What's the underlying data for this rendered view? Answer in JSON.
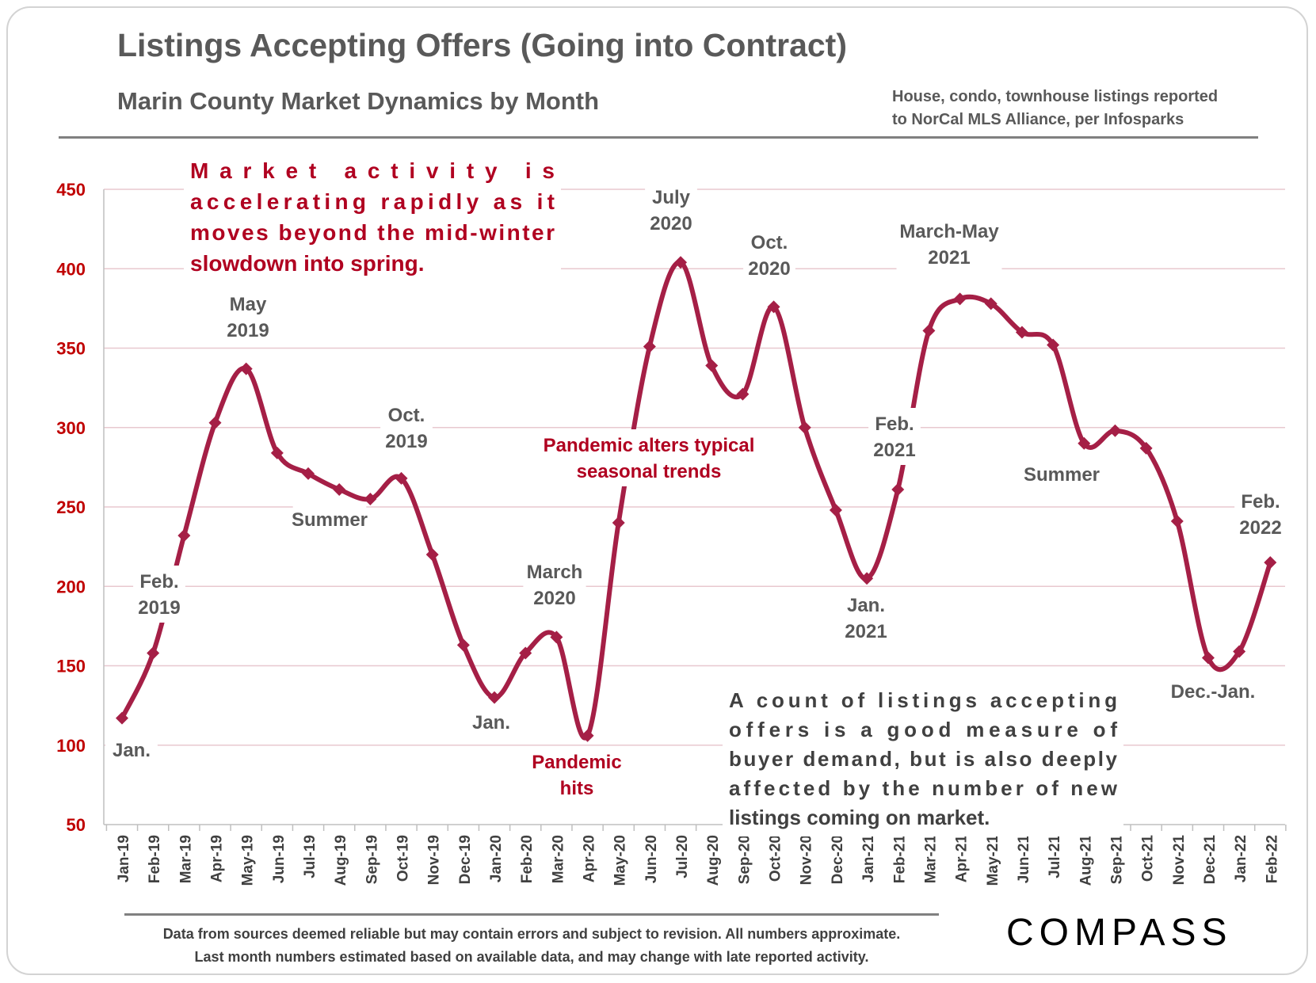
{
  "header": {
    "title": "Listings Accepting Offers (Going into Contract)",
    "subtitle": "Marin County Market Dynamics by Month",
    "source_line1": "House, condo, townhouse listings reported",
    "source_line2": "to NorCal MLS Alliance, per Infosparks"
  },
  "footer": {
    "disclaimer_line1": "Data from sources deemed reliable but may contain errors and subject to revision. All numbers approximate.",
    "disclaimer_line2": "Last month numbers estimated based on available data, and may change with late reported activity.",
    "logo": "COMPASS"
  },
  "colors": {
    "line": "#a51f46",
    "axis_text": "#c00000",
    "annotation_gray": "#595959",
    "annotation_red": "#b00020",
    "grid": "#e8c8cf"
  },
  "chart_data": {
    "type": "line",
    "title": "Listings Accepting Offers (Going into Contract)",
    "ylim": [
      50,
      450
    ],
    "yticks": [
      50,
      100,
      150,
      200,
      250,
      300,
      350,
      400,
      450
    ],
    "grid": true,
    "categories": [
      "Jan-19",
      "Feb-19",
      "Mar-19",
      "Apr-19",
      "May-19",
      "Jun-19",
      "Jul-19",
      "Aug-19",
      "Sep-19",
      "Oct-19",
      "Nov-19",
      "Dec-19",
      "Jan-20",
      "Feb-20",
      "Mar-20",
      "Apr-20",
      "May-20",
      "Jun-20",
      "Jul-20",
      "Aug-20",
      "Sep-20",
      "Oct-20",
      "Nov-20",
      "Dec-20",
      "Jan-21",
      "Feb-21",
      "Mar-21",
      "Apr-21",
      "May-21",
      "Jun-21",
      "Jul-21",
      "Aug-21",
      "Sep-21",
      "Oct-21",
      "Nov-21",
      "Dec-21",
      "Jan-22",
      "Feb-22"
    ],
    "values": [
      117,
      158,
      232,
      303,
      337,
      284,
      271,
      261,
      255,
      268,
      220,
      163,
      130,
      158,
      168,
      106,
      240,
      351,
      404,
      339,
      321,
      376,
      300,
      248,
      205,
      261,
      361,
      381,
      378,
      360,
      352,
      290,
      298,
      287,
      241,
      155,
      159,
      215
    ],
    "annotations": [
      {
        "label": "Jan.",
        "color": "gray"
      },
      {
        "label": "Feb. 2019",
        "color": "gray"
      },
      {
        "label": "May 2019",
        "color": "gray"
      },
      {
        "label": "Summer",
        "color": "gray"
      },
      {
        "label": "Oct. 2019",
        "color": "gray"
      },
      {
        "label": "Jan.",
        "color": "gray"
      },
      {
        "label": "March 2020",
        "color": "gray"
      },
      {
        "label": "Pandemic hits",
        "color": "red"
      },
      {
        "label": "Pandemic alters typical seasonal trends",
        "color": "red"
      },
      {
        "label": "July 2020",
        "color": "gray"
      },
      {
        "label": "Oct. 2020",
        "color": "gray"
      },
      {
        "label": "Jan. 2021",
        "color": "gray"
      },
      {
        "label": "Feb. 2021",
        "color": "gray"
      },
      {
        "label": "March-May 2021",
        "color": "gray"
      },
      {
        "label": "Summer",
        "color": "gray"
      },
      {
        "label": "Dec.-Jan.",
        "color": "gray"
      },
      {
        "label": "Feb. 2022",
        "color": "gray"
      }
    ],
    "note_red": "Market activity is accelerating rapidly as it moves beyond the mid-winter slowdown into spring.",
    "note_gray": "A count of listings accepting offers is a good measure of buyer demand, but is also deeply affected by the number of new listings coming on market."
  }
}
